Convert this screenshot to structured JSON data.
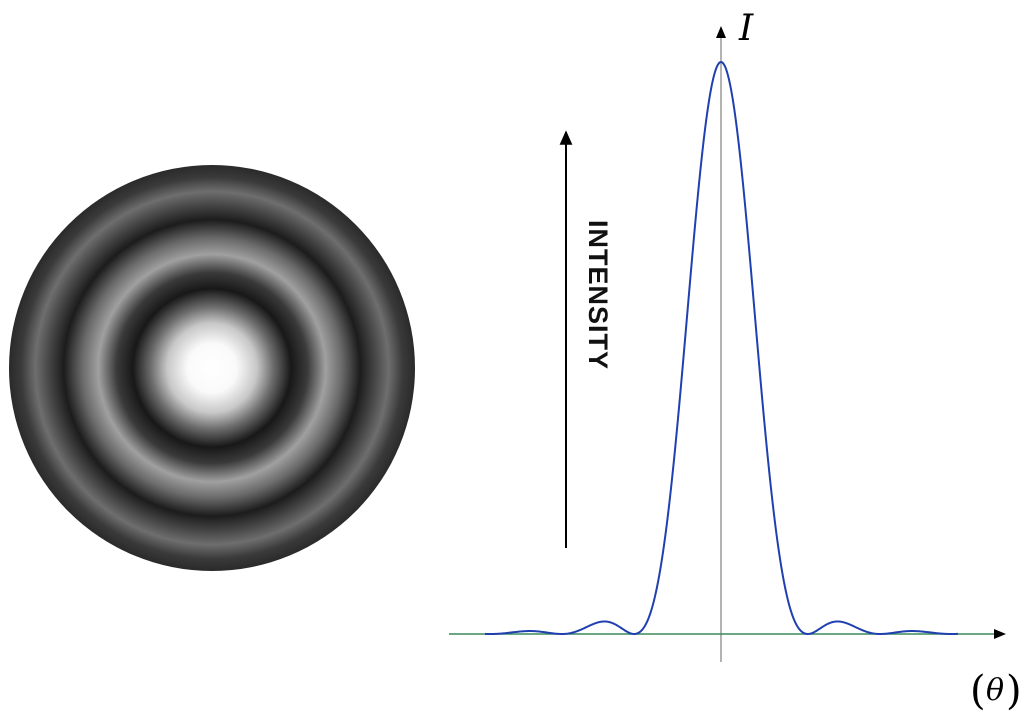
{
  "diagram": {
    "left_panel": {
      "name": "airy-disk-pattern",
      "colors": {
        "center": "#ffffff",
        "dark_ring": "#161616",
        "outer": "#2c2c2c"
      }
    },
    "right_panel": {
      "arrow_label": "INTENSITY",
      "y_axis_label": "I",
      "x_axis_label_symbol": "θ",
      "x_axis_label_open": "(",
      "x_axis_label_close": ")",
      "colors": {
        "curve": "#2040b0",
        "baseline": "#3a8a5a",
        "axis": "#000000",
        "vertical_axis": "#9a9a9a"
      }
    }
  }
}
